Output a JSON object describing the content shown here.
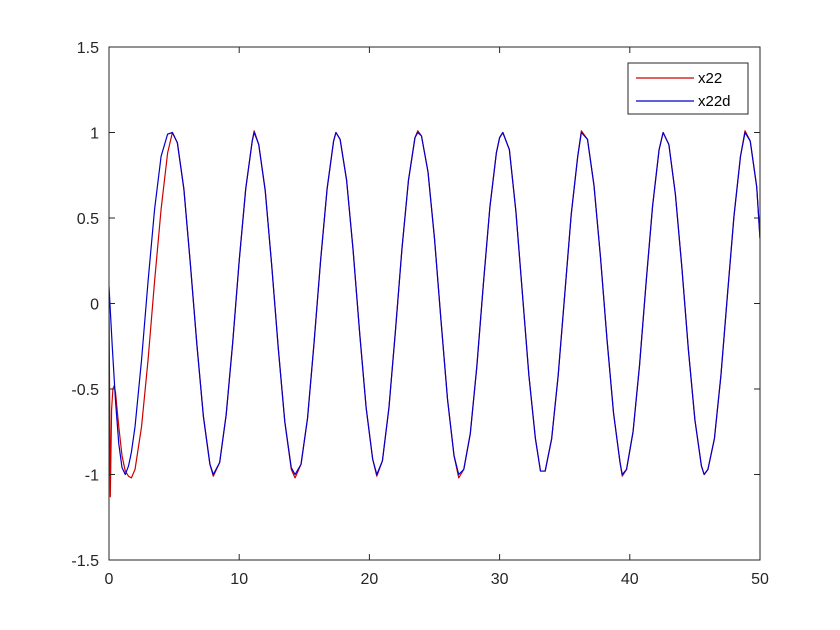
{
  "chart_data": {
    "type": "line",
    "title": "",
    "xlabel": "",
    "ylabel": "",
    "xlim": [
      0,
      50
    ],
    "ylim": [
      -1.5,
      1.5
    ],
    "xticks": [
      0,
      10,
      20,
      30,
      40,
      50
    ],
    "xtick_labels": [
      "0",
      "10",
      "20",
      "30",
      "40",
      "50"
    ],
    "yticks": [
      -1.5,
      -1,
      -0.5,
      0,
      0.5,
      1,
      1.5
    ],
    "ytick_labels": [
      "-1.5",
      "-1",
      "-0.5",
      "0",
      "0.5",
      "1",
      "1.5"
    ],
    "grid": false,
    "box": true,
    "legend": {
      "position": "top-right",
      "entries": [
        "x22",
        "x22d"
      ]
    },
    "series": [
      {
        "name": "x22",
        "color": "#cc0000",
        "x": [
          0,
          0.1,
          0.2,
          0.3,
          0.4,
          0.5,
          0.75,
          1.0,
          1.25,
          1.5,
          1.72,
          2.0,
          2.5,
          3.0,
          3.5,
          4.0,
          4.5,
          4.87,
          5.25,
          5.75,
          6.25,
          6.75,
          7.25,
          7.75,
          8.01,
          8.5,
          9.0,
          9.5,
          10.0,
          10.5,
          11.0,
          11.15,
          11.5,
          12.0,
          12.5,
          13.0,
          13.5,
          14.0,
          14.29,
          14.75,
          15.25,
          15.75,
          16.25,
          16.75,
          17.25,
          17.43,
          17.75,
          18.25,
          18.75,
          19.25,
          19.75,
          20.25,
          20.57,
          21.0,
          21.5,
          22.0,
          22.5,
          23.0,
          23.5,
          23.72,
          24.0,
          24.5,
          25.0,
          25.5,
          26.0,
          26.5,
          26.86,
          27.25,
          27.75,
          28.25,
          28.75,
          29.25,
          29.75,
          30.0,
          30.25,
          30.75,
          31.25,
          31.75,
          32.25,
          32.75,
          33.14,
          33.5,
          34.0,
          34.5,
          35.0,
          35.5,
          36.0,
          36.28,
          36.75,
          37.25,
          37.75,
          38.25,
          38.75,
          39.25,
          39.42,
          39.75,
          40.25,
          40.75,
          41.25,
          41.75,
          42.25,
          42.56,
          43.0,
          43.5,
          44.0,
          44.5,
          45.0,
          45.5,
          45.71,
          46.0,
          46.5,
          47.0,
          47.5,
          48.0,
          48.5,
          48.85,
          49.25,
          49.75,
          50.0
        ],
        "values": [
          0.0,
          -1.13,
          -0.62,
          -0.5,
          -0.48,
          -0.52,
          -0.72,
          -0.89,
          -0.98,
          -1.01,
          -1.02,
          -0.97,
          -0.72,
          -0.33,
          0.13,
          0.55,
          0.88,
          1.0,
          0.94,
          0.67,
          0.23,
          -0.24,
          -0.66,
          -0.94,
          -1.01,
          -0.93,
          -0.65,
          -0.23,
          0.25,
          0.67,
          0.95,
          1.01,
          0.93,
          0.66,
          0.22,
          -0.26,
          -0.69,
          -0.97,
          -1.02,
          -0.94,
          -0.67,
          -0.23,
          0.25,
          0.67,
          0.95,
          1.0,
          0.96,
          0.72,
          0.31,
          -0.17,
          -0.61,
          -0.91,
          -1.01,
          -0.92,
          -0.61,
          -0.16,
          0.32,
          0.72,
          0.97,
          1.01,
          0.98,
          0.77,
          0.38,
          -0.1,
          -0.56,
          -0.89,
          -1.02,
          -0.97,
          -0.76,
          -0.37,
          0.11,
          0.56,
          0.88,
          0.97,
          1.0,
          0.9,
          0.54,
          0.06,
          -0.42,
          -0.79,
          -0.98,
          -0.98,
          -0.79,
          -0.42,
          0.05,
          0.52,
          0.86,
          1.01,
          0.96,
          0.69,
          0.27,
          -0.21,
          -0.64,
          -0.93,
          -1.01,
          -0.97,
          -0.75,
          -0.36,
          0.12,
          0.57,
          0.9,
          1.0,
          0.93,
          0.64,
          0.21,
          -0.27,
          -0.68,
          -0.95,
          -1.0,
          -0.97,
          -0.79,
          -0.42,
          0.05,
          0.51,
          0.86,
          1.01,
          0.95,
          0.68,
          0.38
        ]
      },
      {
        "name": "x22d",
        "color": "#0000cc",
        "x": [
          0,
          0.25,
          0.5,
          0.75,
          1.0,
          1.25,
          1.5,
          1.72,
          2.0,
          2.5,
          3.0,
          3.5,
          4.0,
          4.5,
          4.87,
          5.25,
          5.75,
          6.25,
          6.75,
          7.25,
          7.75,
          8.01,
          8.5,
          9.0,
          9.5,
          10.0,
          10.5,
          11.0,
          11.15,
          11.5,
          12.0,
          12.5,
          13.0,
          13.5,
          14.0,
          14.29,
          14.75,
          15.25,
          15.75,
          16.25,
          16.75,
          17.25,
          17.43,
          17.75,
          18.25,
          18.75,
          19.25,
          19.75,
          20.25,
          20.57,
          21.0,
          21.5,
          22.0,
          22.5,
          23.0,
          23.5,
          23.72,
          24.0,
          24.5,
          25.0,
          25.5,
          26.0,
          26.5,
          26.86,
          27.25,
          27.75,
          28.25,
          28.75,
          29.25,
          29.75,
          30.0,
          30.25,
          30.75,
          31.25,
          31.75,
          32.25,
          32.75,
          33.14,
          33.5,
          34.0,
          34.5,
          35.0,
          35.5,
          36.0,
          36.28,
          36.75,
          37.25,
          37.75,
          38.25,
          38.75,
          39.25,
          39.42,
          39.75,
          40.25,
          40.75,
          41.25,
          41.75,
          42.25,
          42.56,
          43.0,
          43.5,
          44.0,
          44.5,
          45.0,
          45.5,
          45.71,
          46.0,
          46.5,
          47.0,
          47.5,
          48.0,
          48.5,
          48.85,
          49.25,
          49.75,
          50.0
        ],
        "values": [
          0.1,
          -0.25,
          -0.57,
          -0.82,
          -0.96,
          -1.0,
          -0.95,
          -0.87,
          -0.72,
          -0.33,
          0.13,
          0.55,
          0.86,
          0.99,
          1.0,
          0.94,
          0.67,
          0.23,
          -0.24,
          -0.66,
          -0.94,
          -1.0,
          -0.93,
          -0.65,
          -0.23,
          0.25,
          0.67,
          0.95,
          1.0,
          0.93,
          0.66,
          0.22,
          -0.26,
          -0.69,
          -0.96,
          -1.0,
          -0.94,
          -0.67,
          -0.23,
          0.25,
          0.67,
          0.95,
          1.0,
          0.96,
          0.72,
          0.31,
          -0.17,
          -0.61,
          -0.91,
          -1.0,
          -0.92,
          -0.61,
          -0.16,
          0.32,
          0.72,
          0.97,
          1.0,
          0.98,
          0.77,
          0.38,
          -0.1,
          -0.56,
          -0.89,
          -1.0,
          -0.97,
          -0.76,
          -0.37,
          0.11,
          0.56,
          0.88,
          0.97,
          1.0,
          0.9,
          0.54,
          0.06,
          -0.42,
          -0.79,
          -0.98,
          -0.98,
          -0.79,
          -0.42,
          0.05,
          0.52,
          0.86,
          1.0,
          0.96,
          0.69,
          0.27,
          -0.21,
          -0.64,
          -0.93,
          -1.0,
          -0.97,
          -0.75,
          -0.36,
          0.12,
          0.57,
          0.9,
          1.0,
          0.93,
          0.64,
          0.21,
          -0.27,
          -0.68,
          -0.95,
          -1.0,
          -0.97,
          -0.79,
          -0.42,
          0.05,
          0.51,
          0.86,
          1.0,
          0.95,
          0.68,
          0.38
        ]
      }
    ]
  }
}
